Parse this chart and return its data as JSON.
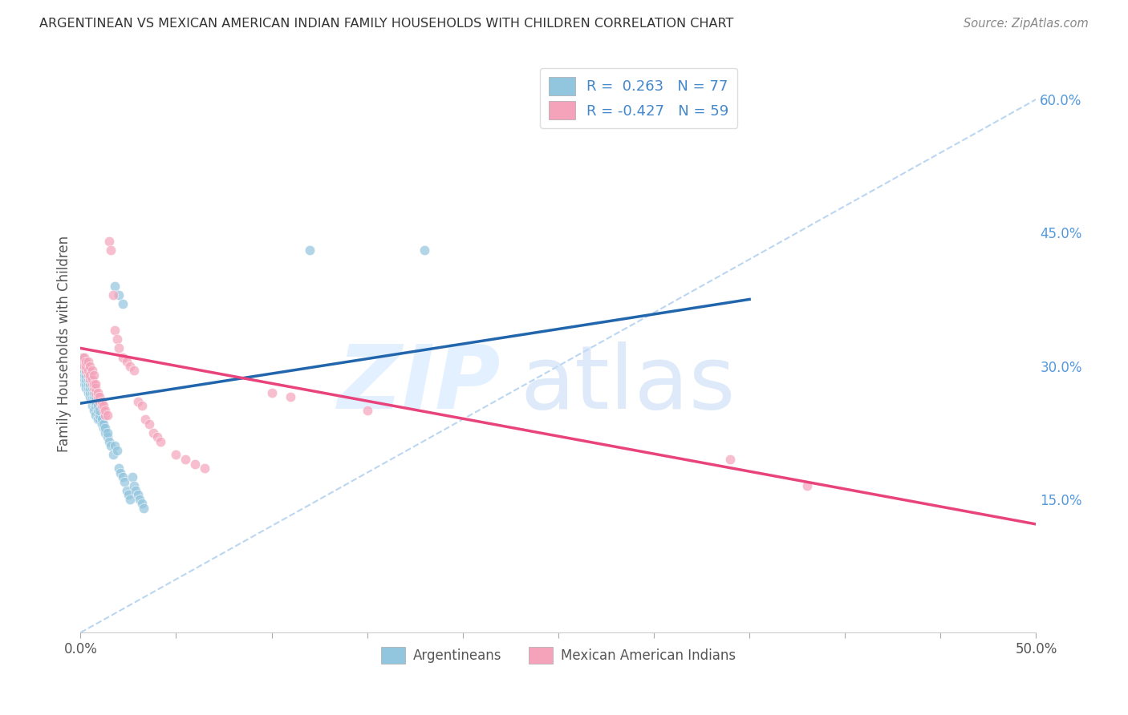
{
  "title": "ARGENTINEAN VS MEXICAN AMERICAN INDIAN FAMILY HOUSEHOLDS WITH CHILDREN CORRELATION CHART",
  "source": "Source: ZipAtlas.com",
  "ylabel": "Family Households with Children",
  "xlim": [
    0.0,
    0.5
  ],
  "ylim": [
    0.0,
    0.65
  ],
  "blue_color": "#92c5de",
  "pink_color": "#f4a3bb",
  "trend_blue": "#2166ac",
  "trend_pink": "#e8437a",
  "dashed_line_color": "#aaccee",
  "blue_scatter_x": [
    0.001,
    0.001,
    0.001,
    0.001,
    0.001,
    0.002,
    0.002,
    0.002,
    0.002,
    0.002,
    0.002,
    0.003,
    0.003,
    0.003,
    0.003,
    0.003,
    0.003,
    0.004,
    0.004,
    0.004,
    0.004,
    0.004,
    0.005,
    0.005,
    0.005,
    0.005,
    0.005,
    0.006,
    0.006,
    0.006,
    0.006,
    0.007,
    0.007,
    0.007,
    0.007,
    0.008,
    0.008,
    0.008,
    0.008,
    0.009,
    0.009,
    0.009,
    0.01,
    0.01,
    0.01,
    0.011,
    0.011,
    0.012,
    0.012,
    0.013,
    0.013,
    0.014,
    0.014,
    0.015,
    0.016,
    0.017,
    0.018,
    0.019,
    0.02,
    0.021,
    0.022,
    0.023,
    0.024,
    0.025,
    0.026,
    0.027,
    0.028,
    0.029,
    0.03,
    0.031,
    0.032,
    0.033,
    0.12,
    0.18,
    0.018,
    0.02,
    0.022
  ],
  "blue_scatter_y": [
    0.29,
    0.295,
    0.3,
    0.305,
    0.31,
    0.28,
    0.285,
    0.29,
    0.295,
    0.3,
    0.305,
    0.275,
    0.28,
    0.285,
    0.29,
    0.295,
    0.3,
    0.27,
    0.275,
    0.28,
    0.285,
    0.29,
    0.265,
    0.27,
    0.275,
    0.28,
    0.285,
    0.255,
    0.265,
    0.27,
    0.275,
    0.25,
    0.26,
    0.265,
    0.27,
    0.245,
    0.255,
    0.26,
    0.265,
    0.24,
    0.25,
    0.255,
    0.24,
    0.245,
    0.25,
    0.235,
    0.24,
    0.23,
    0.235,
    0.225,
    0.23,
    0.22,
    0.225,
    0.215,
    0.21,
    0.2,
    0.21,
    0.205,
    0.185,
    0.18,
    0.175,
    0.17,
    0.16,
    0.155,
    0.15,
    0.175,
    0.165,
    0.16,
    0.155,
    0.15,
    0.145,
    0.14,
    0.43,
    0.43,
    0.39,
    0.38,
    0.37
  ],
  "pink_scatter_x": [
    0.001,
    0.001,
    0.002,
    0.002,
    0.003,
    0.003,
    0.003,
    0.004,
    0.004,
    0.004,
    0.005,
    0.005,
    0.005,
    0.006,
    0.006,
    0.006,
    0.007,
    0.007,
    0.007,
    0.008,
    0.008,
    0.008,
    0.009,
    0.009,
    0.01,
    0.01,
    0.011,
    0.011,
    0.012,
    0.012,
    0.013,
    0.013,
    0.014,
    0.015,
    0.016,
    0.017,
    0.018,
    0.019,
    0.02,
    0.022,
    0.024,
    0.026,
    0.028,
    0.03,
    0.032,
    0.034,
    0.036,
    0.038,
    0.04,
    0.042,
    0.05,
    0.055,
    0.06,
    0.065,
    0.1,
    0.11,
    0.15,
    0.34,
    0.38
  ],
  "pink_scatter_y": [
    0.305,
    0.31,
    0.3,
    0.31,
    0.295,
    0.3,
    0.305,
    0.29,
    0.295,
    0.305,
    0.285,
    0.29,
    0.3,
    0.28,
    0.285,
    0.295,
    0.275,
    0.28,
    0.29,
    0.27,
    0.275,
    0.28,
    0.265,
    0.27,
    0.26,
    0.265,
    0.255,
    0.26,
    0.25,
    0.255,
    0.245,
    0.25,
    0.245,
    0.44,
    0.43,
    0.38,
    0.34,
    0.33,
    0.32,
    0.31,
    0.305,
    0.3,
    0.295,
    0.26,
    0.255,
    0.24,
    0.235,
    0.225,
    0.22,
    0.215,
    0.2,
    0.195,
    0.19,
    0.185,
    0.27,
    0.265,
    0.25,
    0.195,
    0.165
  ],
  "blue_trend_x": [
    0.0,
    0.35
  ],
  "blue_trend_y": [
    0.258,
    0.375
  ],
  "pink_trend_x": [
    0.0,
    0.5
  ],
  "pink_trend_y": [
    0.32,
    0.122
  ],
  "diag_line_x": [
    0.0,
    0.5
  ],
  "diag_line_y": [
    0.0,
    0.6
  ],
  "background_color": "#ffffff",
  "grid_color": "#cccccc"
}
